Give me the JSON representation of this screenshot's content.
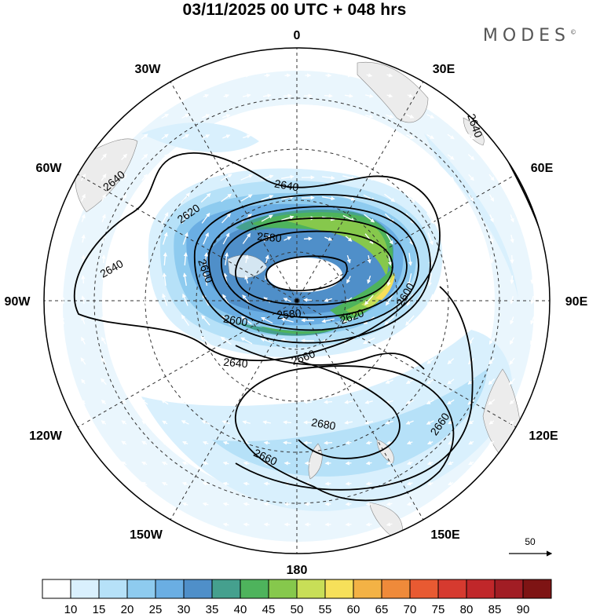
{
  "header": {
    "title": "03/11/2025  00 UTC  + 048 hrs",
    "brand": "MODES",
    "brand_mark": "©"
  },
  "map": {
    "projection": "polar-stereographic",
    "hemisphere": "south",
    "longitude_labels": [
      "0",
      "30E",
      "60E",
      "90E",
      "120E",
      "150E",
      "180",
      "150W",
      "120W",
      "90W",
      "60W",
      "30W"
    ],
    "contour_labels": [
      "2640",
      "2640",
      "2640",
      "2640",
      "2640",
      "2620",
      "2620",
      "2600",
      "2600",
      "2600",
      "2580",
      "2580",
      "2640",
      "2660",
      "2660",
      "2660",
      "2680"
    ],
    "shading_variable_units_step": 5
  },
  "legend": {
    "ticks": [
      "10",
      "15",
      "20",
      "25",
      "30",
      "35",
      "40",
      "45",
      "50",
      "55",
      "60",
      "65",
      "70",
      "75",
      "80",
      "85",
      "90"
    ],
    "colors": [
      "#ffffff",
      "#d9f0fd",
      "#b6e1f8",
      "#8ecbef",
      "#6aaee3",
      "#4f8fc9",
      "#45a08e",
      "#4eb35c",
      "#86c84c",
      "#c8de57",
      "#f6e05a",
      "#f3b245",
      "#ef8a3a",
      "#e85a32",
      "#d63a2f",
      "#c0272a",
      "#a11d24",
      "#7e1414"
    ]
  },
  "reference_vector": {
    "label": "50"
  }
}
